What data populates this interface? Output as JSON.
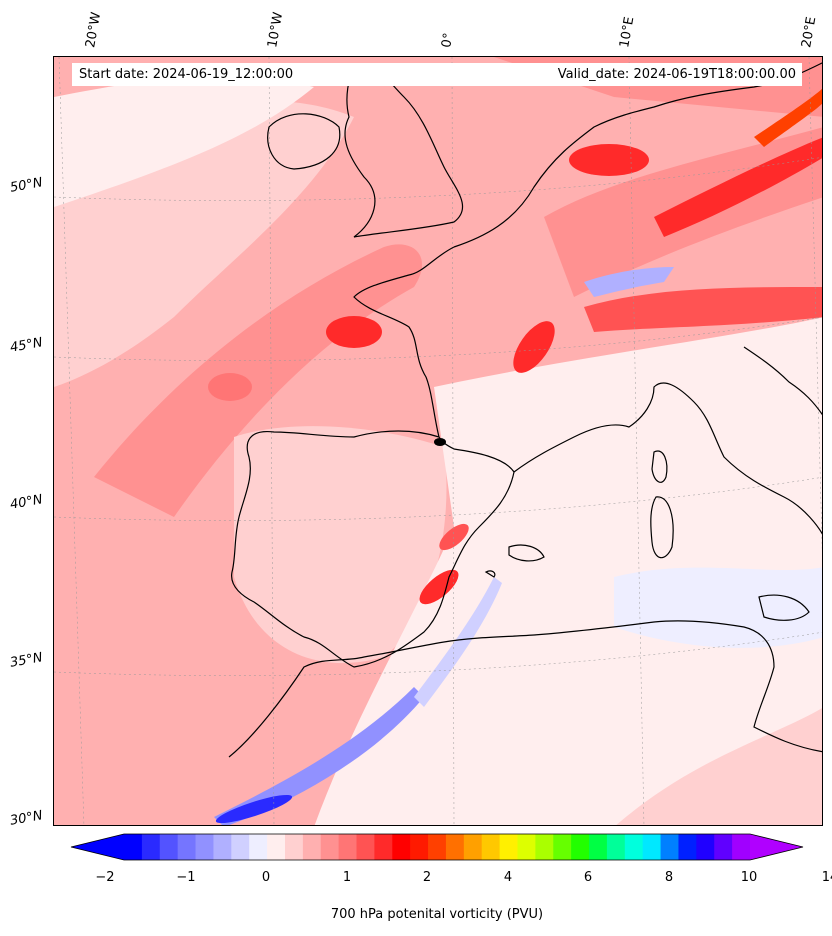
{
  "header": {
    "start_date": "Start date: 2024-06-19_12:00:00",
    "valid_date": "Valid_date: 2024-06-19T18:00:00.00"
  },
  "axes": {
    "longitude_labels": [
      "20°W",
      "10°W",
      "0°",
      "10°E",
      "20°E"
    ],
    "latitude_labels": [
      "50°N",
      "45°N",
      "40°N",
      "35°N",
      "30°N"
    ]
  },
  "colorbar": {
    "label": "700 hPa potenital vorticity (PVU)",
    "tick_labels": [
      "−2",
      "−1",
      "0",
      "1",
      "2",
      "4",
      "6",
      "8",
      "10",
      "14"
    ],
    "extend": "both",
    "colors": [
      "#0000ff",
      "#2a2aff",
      "#5353ff",
      "#7575ff",
      "#9191ff",
      "#b0b0ff",
      "#d0d0ff",
      "#eeeeff",
      "#ffeeee",
      "#ffd0d0",
      "#ffb0b0",
      "#ff9191",
      "#ff7575",
      "#ff5353",
      "#ff2a2a",
      "#ff0000",
      "#ff1a00",
      "#ff4000",
      "#ff7000",
      "#ffa000",
      "#ffc800",
      "#fff000",
      "#ddff00",
      "#aaff00",
      "#66ff00",
      "#22ff00",
      "#00ff44",
      "#00ff99",
      "#00ffdd",
      "#00e8ff",
      "#0080ff",
      "#0020ff",
      "#2000ff",
      "#6000ff",
      "#a000ff"
    ],
    "under_color": "#0000ff",
    "over_color": "#b000ff"
  },
  "map_data": {
    "region": "Western Europe, Iberian Peninsula, North Africa, Western Mediterranean",
    "variable": "700 hPa potential vorticity",
    "units": "PVU",
    "lon_range": [
      -20,
      20
    ],
    "lat_range": [
      30,
      55
    ]
  }
}
